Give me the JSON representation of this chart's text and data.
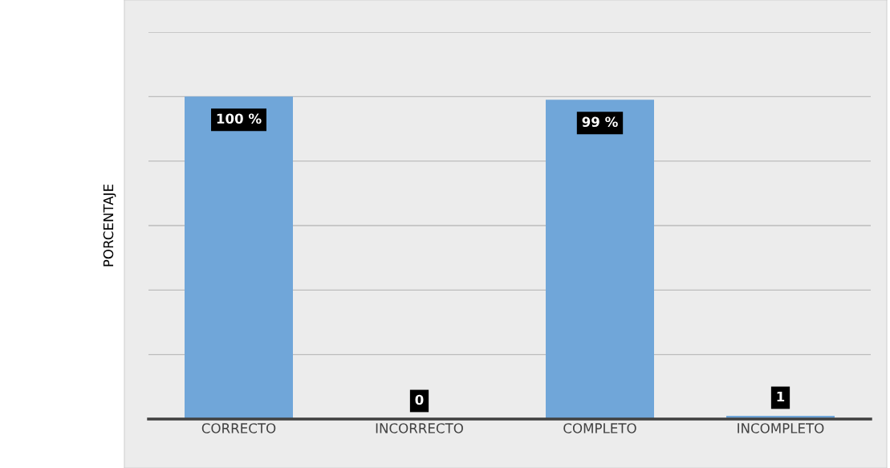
{
  "chart_data": {
    "type": "bar",
    "ylabel": "PORCENTAJE",
    "categories": [
      "CORRECTO",
      "INCORRECTO",
      "COMPLETO",
      "INCOMPLETO"
    ],
    "values": [
      100,
      0,
      99,
      1
    ],
    "value_labels": [
      "100 %",
      "0",
      "99 %",
      "1"
    ],
    "color": "#70a6d9",
    "ylim": [
      0,
      120
    ],
    "yticks": [
      {
        "value": 0,
        "label": null
      },
      {
        "value": 20,
        "label": null
      },
      {
        "value": 40,
        "label": null
      },
      {
        "value": 60,
        "label": null
      },
      {
        "value": 80,
        "label": null
      },
      {
        "value": 100,
        "label": null
      },
      {
        "value": 120,
        "label": null
      }
    ],
    "tick_labels": "x",
    "grid": "y"
  }
}
